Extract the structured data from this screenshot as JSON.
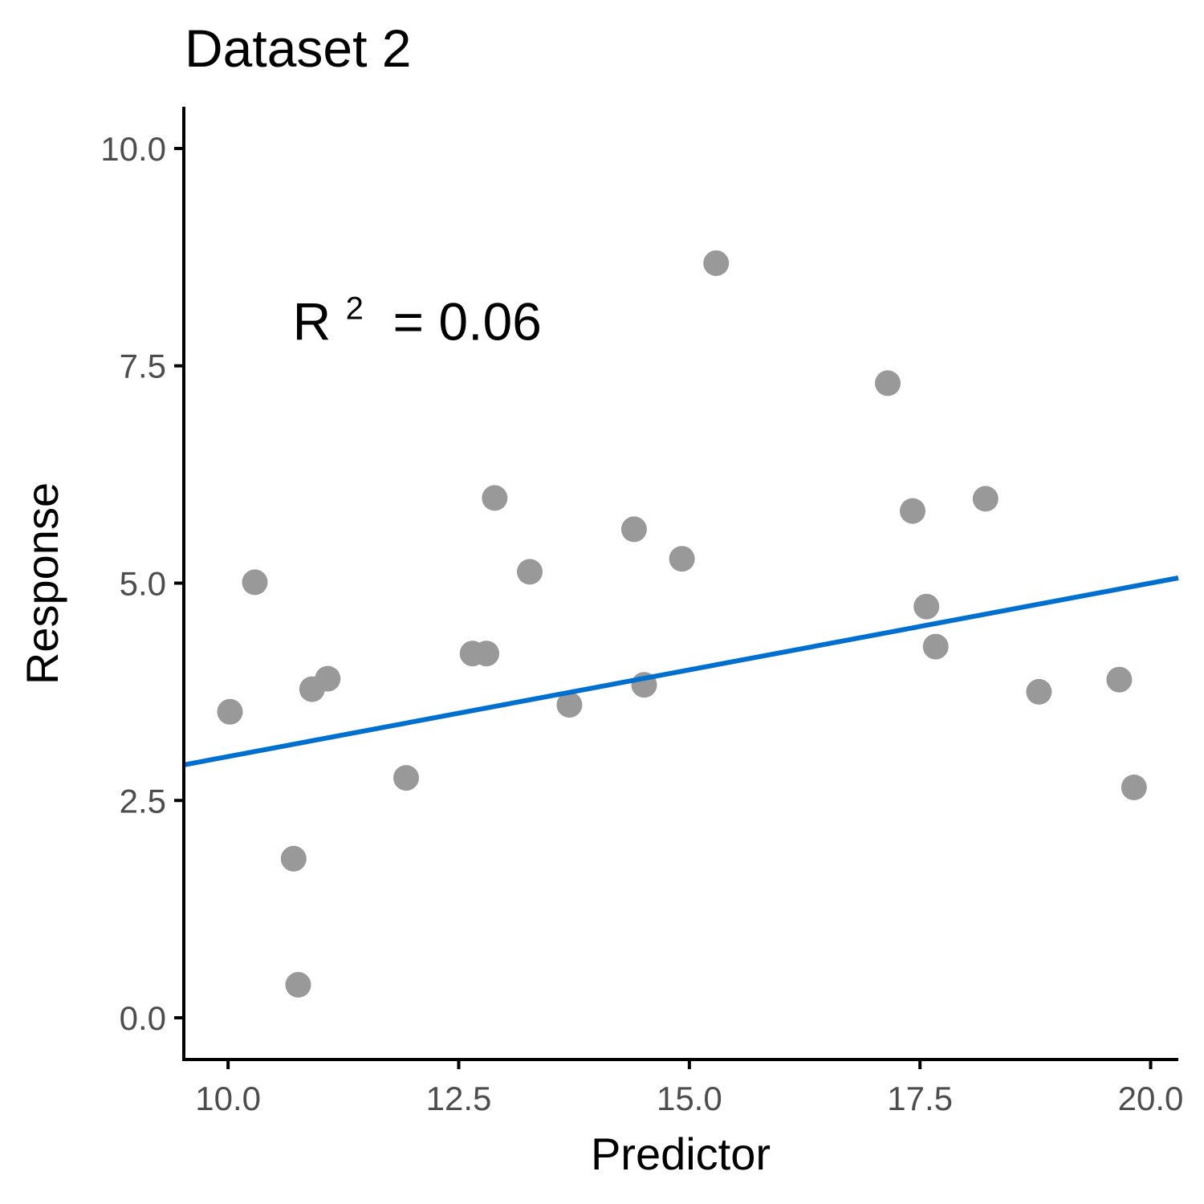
{
  "chart_data": {
    "type": "scatter",
    "title": "Dataset 2",
    "xlabel": "Predictor",
    "ylabel": "Response",
    "xlim": [
      9.52,
      20.3
    ],
    "ylim": [
      -0.48,
      10.48
    ],
    "xticks": [
      10.0,
      12.5,
      15.0,
      17.5,
      20.0
    ],
    "xtick_labels": [
      "10.0",
      "12.5",
      "15.0",
      "17.5",
      "20.0"
    ],
    "yticks": [
      0.0,
      2.5,
      5.0,
      7.5,
      10.0
    ],
    "ytick_labels": [
      "0.0",
      "2.5",
      "5.0",
      "7.5",
      "10.0"
    ],
    "grid": false,
    "point_color": "#999999",
    "line_color": "#0070d0",
    "points": [
      {
        "x": 10.02,
        "y": 3.52
      },
      {
        "x": 10.29,
        "y": 5.01
      },
      {
        "x": 10.71,
        "y": 1.83
      },
      {
        "x": 10.76,
        "y": 0.38
      },
      {
        "x": 10.91,
        "y": 3.78
      },
      {
        "x": 11.08,
        "y": 3.9
      },
      {
        "x": 11.93,
        "y": 2.76
      },
      {
        "x": 12.65,
        "y": 4.19
      },
      {
        "x": 12.8,
        "y": 4.19
      },
      {
        "x": 12.89,
        "y": 5.98
      },
      {
        "x": 13.27,
        "y": 5.13
      },
      {
        "x": 13.7,
        "y": 3.6
      },
      {
        "x": 14.4,
        "y": 5.62
      },
      {
        "x": 14.51,
        "y": 3.83
      },
      {
        "x": 14.92,
        "y": 5.28
      },
      {
        "x": 15.29,
        "y": 8.68
      },
      {
        "x": 17.15,
        "y": 7.3
      },
      {
        "x": 17.42,
        "y": 5.83
      },
      {
        "x": 17.57,
        "y": 4.73
      },
      {
        "x": 17.67,
        "y": 4.27
      },
      {
        "x": 18.21,
        "y": 5.97
      },
      {
        "x": 18.79,
        "y": 3.75
      },
      {
        "x": 19.66,
        "y": 3.89
      },
      {
        "x": 19.82,
        "y": 2.65
      }
    ],
    "fit_line": {
      "x": [
        9.52,
        20.3
      ],
      "y": [
        2.91,
        5.06
      ]
    },
    "annotation": {
      "base": "R",
      "superscript": "2",
      "rest": " = 0.06",
      "x": 10.7,
      "y": 7.8
    }
  }
}
